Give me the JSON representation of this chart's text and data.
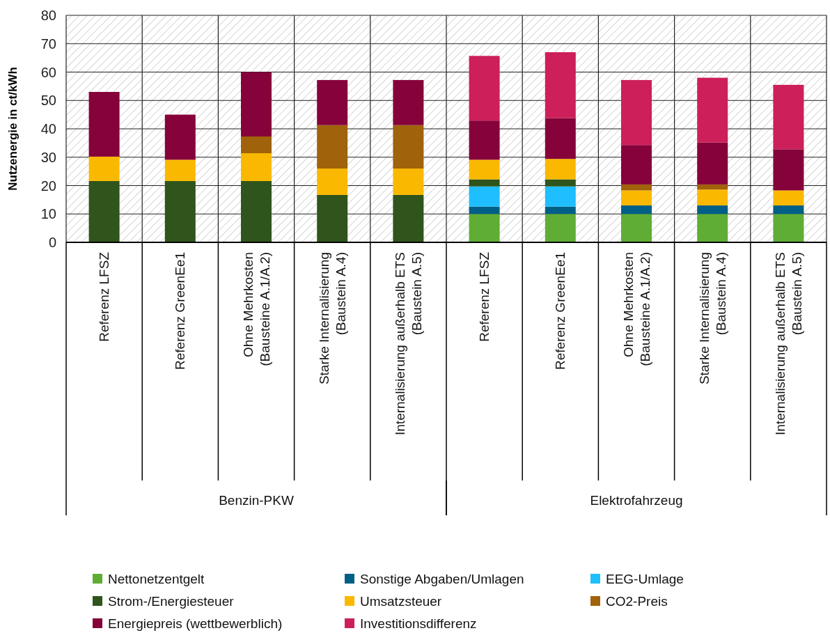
{
  "chart_data": {
    "type": "bar",
    "stacked": true,
    "ylabel": "Nutzenergie in ct/kWh",
    "categories": [
      "Referenz LFSZ",
      "Referenz GreenEe1",
      "Ohne Mehrkosten (Bausteine A.1/A.2)",
      "Starke Internalisierung (Baustein A.4)",
      "Internalisierung außerhalb ETS (Baustein A.5)",
      "Referenz LFSZ",
      "Referenz GreenEe1",
      "Ohne Mehrkosten (Bausteine A.1/A.2)",
      "Starke Internalisierung (Baustein A.4)",
      "Internalisierung außerhalb ETS (Baustein A.5)"
    ],
    "annotations": [
      "Benzin-PKW",
      "Elektrofahrzeug"
    ],
    "series": [
      {
        "name": "Nettonetzentgelt",
        "color": "#5fad35",
        "values": [
          null,
          null,
          null,
          null,
          null,
          10,
          10,
          10,
          10,
          10
        ]
      },
      {
        "name": "Sonstige Abgaben/Umlagen",
        "color": "#005f86",
        "values": [
          null,
          null,
          null,
          null,
          null,
          2.6,
          2.6,
          3.0,
          3.0,
          3.0
        ]
      },
      {
        "name": "EEG-Umlage",
        "color": "#1ebeff",
        "values": [
          null,
          null,
          null,
          null,
          null,
          7.1,
          7.1,
          null,
          null,
          null
        ]
      },
      {
        "name": "Strom-/Energiesteuer",
        "color": "#2f541c",
        "values": [
          21.6,
          21.6,
          21.6,
          16.7,
          16.7,
          2.5,
          2.5,
          null,
          null,
          null
        ]
      },
      {
        "name": "Umsatzsteuer",
        "color": "#fab900",
        "values": [
          8.6,
          7.5,
          9.8,
          9.3,
          9.3,
          6.9,
          7.2,
          5.3,
          5.6,
          5.3
        ]
      },
      {
        "name": "CO2-Preis",
        "color": "#a0620a",
        "values": [
          null,
          null,
          5.9,
          15.3,
          15.3,
          null,
          null,
          2.1,
          1.8,
          null
        ]
      },
      {
        "name": "Energiepreis (wettbewerblich)",
        "color": "#86023a",
        "values": [
          22.8,
          15.9,
          22.7,
          15.9,
          15.9,
          13.8,
          14.4,
          13.9,
          14.8,
          14.5
        ]
      },
      {
        "name": "Investitionsdifferenz",
        "color": "#cd1f5a",
        "values": [
          null,
          null,
          null,
          null,
          null,
          22.8,
          23.2,
          22.9,
          22.8,
          22.7
        ]
      }
    ],
    "ylim": [
      0,
      80
    ],
    "yticks": [
      0,
      10,
      20,
      30,
      40,
      50,
      60,
      70,
      80
    ],
    "grid": true,
    "legend": "bottom"
  }
}
